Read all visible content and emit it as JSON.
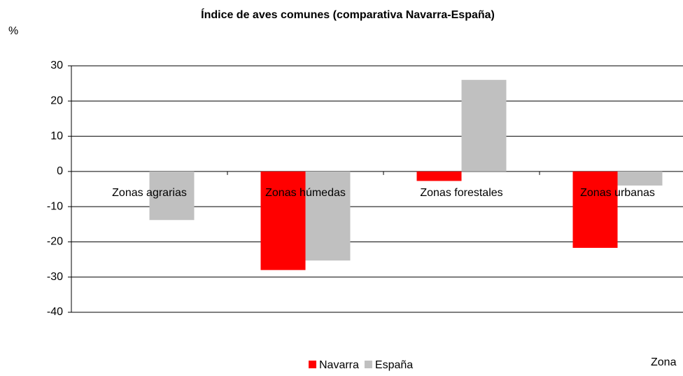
{
  "chart_data": {
    "type": "bar",
    "title": "Índice de aves comunes (comparativa Navarra-España)",
    "y_label": "%",
    "x_label": "Zona",
    "categories": [
      "Zonas agrarias",
      "Zonas húmedas",
      "Zonas forestales",
      "Zonas urbanas"
    ],
    "series": [
      {
        "name": "Navarra",
        "color": "#ff0000",
        "values": [
          0,
          -28,
          -2.7,
          -21.7
        ]
      },
      {
        "name": "España",
        "color": "#c0c0c0",
        "values": [
          -13.8,
          -25.3,
          26,
          -4
        ]
      }
    ],
    "ylim": [
      -40,
      30
    ],
    "yticks": [
      -40,
      -30,
      -20,
      -10,
      0,
      10,
      20,
      30
    ],
    "grid": true,
    "legend": "bottom"
  }
}
